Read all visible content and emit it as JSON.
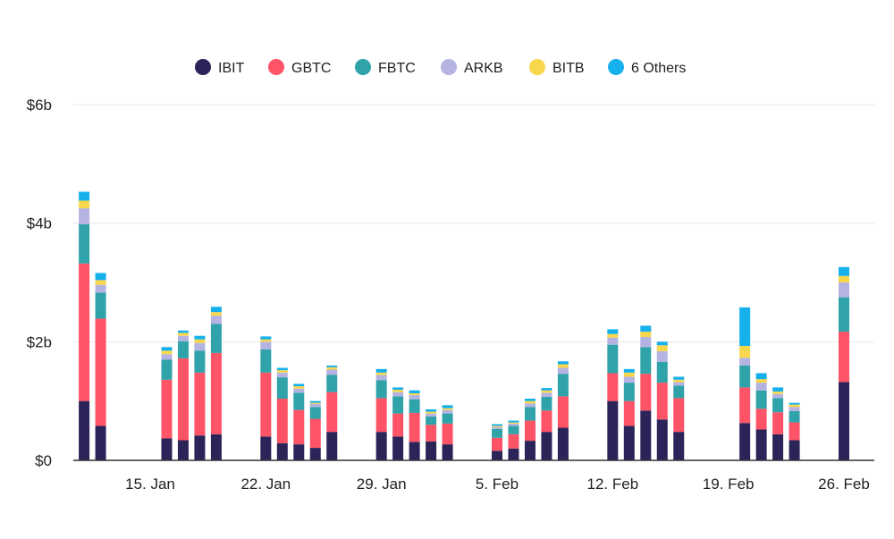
{
  "chart_data": {
    "type": "bar",
    "stacked": true,
    "title": "",
    "xlabel": "",
    "ylabel": "",
    "ylim": [
      0,
      6
    ],
    "y_unit": "billions USD",
    "grid": true,
    "legend_placement": "top-center",
    "y_ticks": [
      {
        "value": 0,
        "label": "$0"
      },
      {
        "value": 2,
        "label": "$2b"
      },
      {
        "value": 4,
        "label": "$4b"
      },
      {
        "value": 6,
        "label": "$6b"
      }
    ],
    "x_ticks": [
      {
        "date": "2024-01-15",
        "label": "15. Jan"
      },
      {
        "date": "2024-01-22",
        "label": "22. Jan"
      },
      {
        "date": "2024-01-29",
        "label": "29. Jan"
      },
      {
        "date": "2024-02-05",
        "label": "5. Feb"
      },
      {
        "date": "2024-02-12",
        "label": "12. Feb"
      },
      {
        "date": "2024-02-19",
        "label": "19. Feb"
      },
      {
        "date": "2024-02-26",
        "label": "26. Feb"
      }
    ],
    "dates": [
      "2024-01-11",
      "2024-01-12",
      "2024-01-16",
      "2024-01-17",
      "2024-01-18",
      "2024-01-19",
      "2024-01-22",
      "2024-01-23",
      "2024-01-24",
      "2024-01-25",
      "2024-01-26",
      "2024-01-29",
      "2024-01-30",
      "2024-01-31",
      "2024-02-01",
      "2024-02-02",
      "2024-02-05",
      "2024-02-06",
      "2024-02-07",
      "2024-02-08",
      "2024-02-09",
      "2024-02-12",
      "2024-02-13",
      "2024-02-14",
      "2024-02-15",
      "2024-02-16",
      "2024-02-20",
      "2024-02-21",
      "2024-02-22",
      "2024-02-23",
      "2024-02-26"
    ],
    "series": [
      {
        "name": "IBIT",
        "color": "#2b2459",
        "values": [
          1.0,
          0.58,
          0.37,
          0.34,
          0.42,
          0.44,
          0.4,
          0.29,
          0.27,
          0.21,
          0.48,
          0.48,
          0.4,
          0.31,
          0.32,
          0.27,
          0.16,
          0.2,
          0.33,
          0.48,
          0.55,
          1.0,
          0.58,
          0.84,
          0.69,
          0.48,
          0.63,
          0.52,
          0.44,
          0.34,
          1.32
        ]
      },
      {
        "name": "GBTC",
        "color": "#ff5367",
        "values": [
          2.32,
          1.81,
          0.99,
          1.38,
          1.06,
          1.37,
          1.08,
          0.75,
          0.58,
          0.49,
          0.67,
          0.57,
          0.39,
          0.49,
          0.28,
          0.35,
          0.22,
          0.24,
          0.34,
          0.36,
          0.53,
          0.47,
          0.42,
          0.62,
          0.62,
          0.57,
          0.6,
          0.35,
          0.37,
          0.3,
          0.85
        ]
      },
      {
        "name": "FBTC",
        "color": "#2fa3a9",
        "values": [
          0.66,
          0.44,
          0.34,
          0.29,
          0.37,
          0.49,
          0.39,
          0.36,
          0.29,
          0.2,
          0.29,
          0.3,
          0.29,
          0.23,
          0.14,
          0.17,
          0.15,
          0.14,
          0.23,
          0.23,
          0.38,
          0.48,
          0.31,
          0.45,
          0.35,
          0.21,
          0.37,
          0.31,
          0.24,
          0.19,
          0.58
        ]
      },
      {
        "name": "ARKB",
        "color": "#b5b3e2",
        "values": [
          0.27,
          0.13,
          0.09,
          0.09,
          0.13,
          0.14,
          0.13,
          0.08,
          0.07,
          0.05,
          0.09,
          0.09,
          0.07,
          0.07,
          0.05,
          0.06,
          0.03,
          0.04,
          0.06,
          0.07,
          0.1,
          0.12,
          0.1,
          0.17,
          0.18,
          0.06,
          0.13,
          0.13,
          0.07,
          0.07,
          0.25
        ]
      },
      {
        "name": "BITB",
        "color": "#f9d74c",
        "values": [
          0.13,
          0.08,
          0.06,
          0.05,
          0.06,
          0.06,
          0.04,
          0.04,
          0.04,
          0.02,
          0.04,
          0.04,
          0.04,
          0.03,
          0.03,
          0.03,
          0.02,
          0.02,
          0.04,
          0.04,
          0.06,
          0.06,
          0.07,
          0.09,
          0.1,
          0.04,
          0.2,
          0.06,
          0.04,
          0.04,
          0.11
        ]
      },
      {
        "name": "6 Others",
        "color": "#16b0ec",
        "values": [
          0.15,
          0.12,
          0.06,
          0.04,
          0.06,
          0.09,
          0.05,
          0.04,
          0.04,
          0.03,
          0.03,
          0.06,
          0.04,
          0.05,
          0.04,
          0.05,
          0.03,
          0.03,
          0.04,
          0.04,
          0.05,
          0.08,
          0.06,
          0.1,
          0.06,
          0.05,
          0.65,
          0.1,
          0.07,
          0.03,
          0.15
        ]
      }
    ]
  }
}
